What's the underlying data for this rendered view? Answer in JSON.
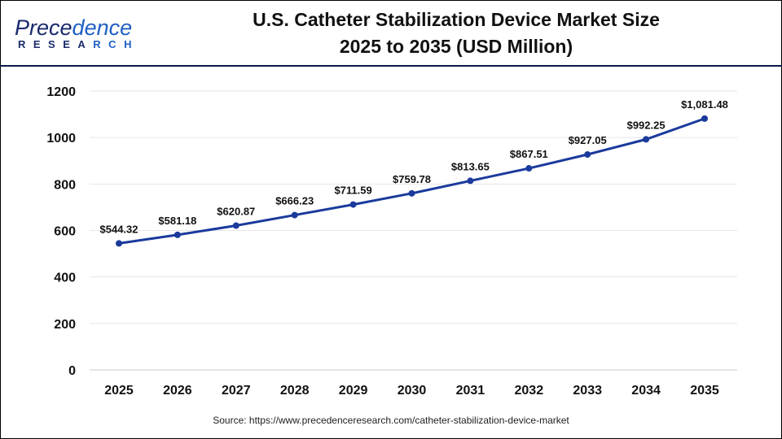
{
  "logo": {
    "line1": "Precedence",
    "line2": "RESEARCH"
  },
  "header": {
    "title_line1": "U.S. Catheter Stabilization Device Market Size",
    "title_line2": "2025 to 2035 (USD Million)"
  },
  "source": "Source: https://www.precedenceresearch.com/catheter-stabilization-device-market",
  "chart_data": {
    "type": "line",
    "title": "U.S. Catheter Stabilization Device Market Size 2025 to 2035 (USD Million)",
    "categories": [
      "2025",
      "2026",
      "2027",
      "2028",
      "2029",
      "2030",
      "2031",
      "2032",
      "2033",
      "2034",
      "2035"
    ],
    "values": [
      544.32,
      581.18,
      620.87,
      666.23,
      711.59,
      759.78,
      813.65,
      867.51,
      927.05,
      992.25,
      1081.48
    ],
    "labels": [
      "$544.32",
      "$581.18",
      "$620.87",
      "$666.23",
      "$711.59",
      "$759.78",
      "$813.65",
      "$867.51",
      "$927.05",
      "$992.25",
      "$1,081.48"
    ],
    "yticks": [
      0,
      200,
      400,
      600,
      800,
      1000,
      1200
    ],
    "ylim": [
      0,
      1200
    ],
    "grid": true,
    "line_color": "#1a3a9c",
    "xlabel": "",
    "ylabel": ""
  }
}
